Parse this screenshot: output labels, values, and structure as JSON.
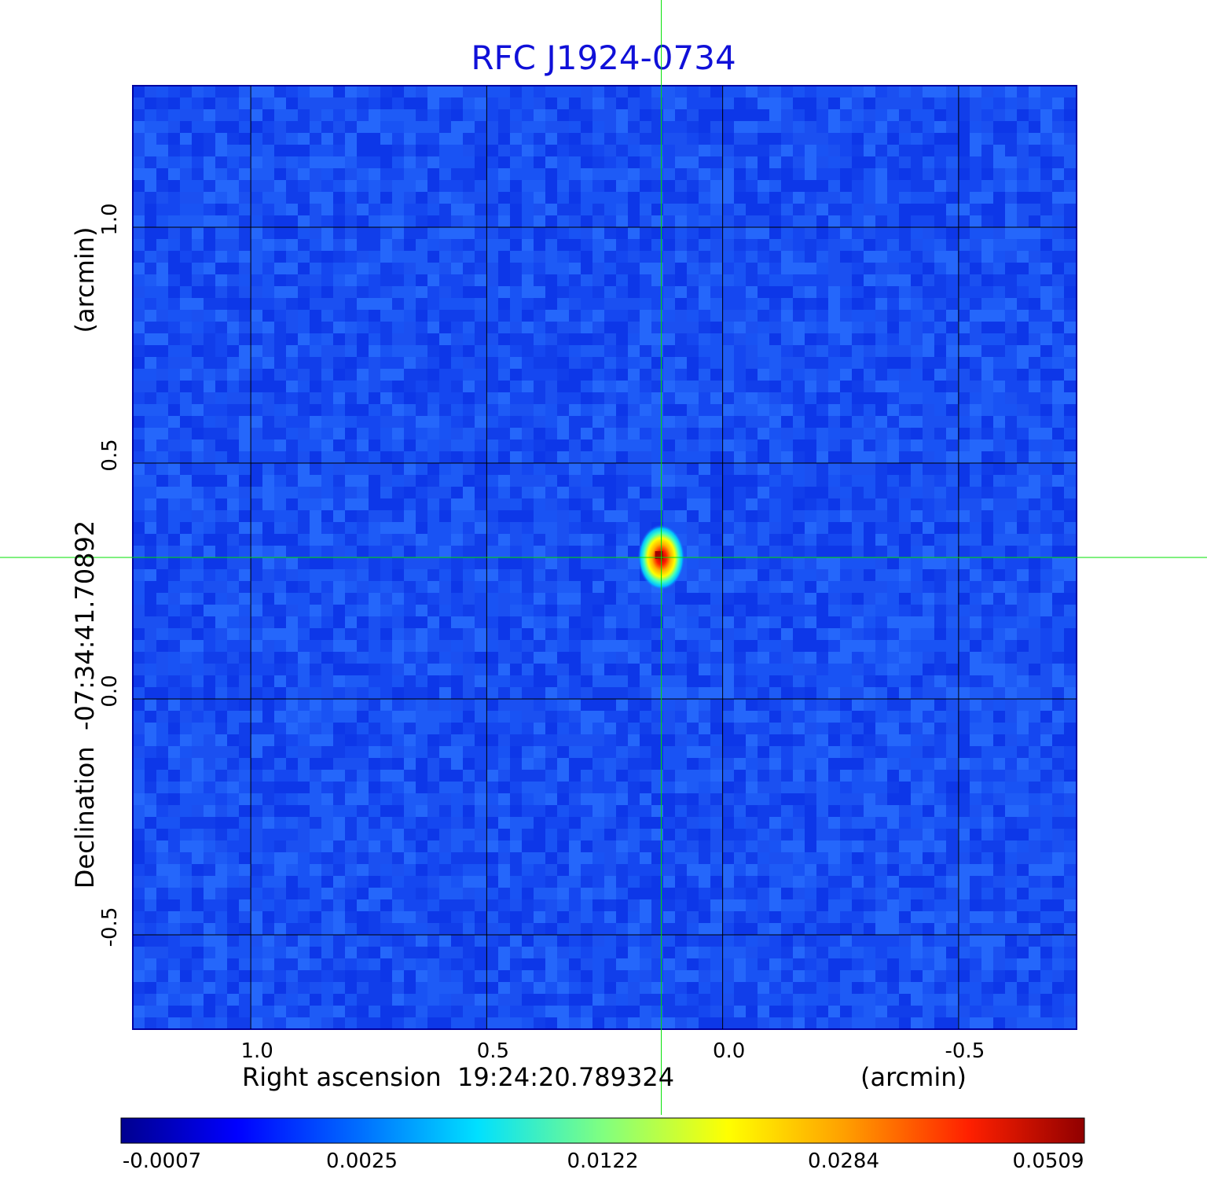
{
  "chart_data": {
    "type": "heatmap",
    "title": "RFC J1924-0734",
    "xlabel": "Right ascension  19:24:20.789324",
    "xunit": "(arcmin)",
    "ylabel": "Declination  -07:34:41.70892",
    "yunit": "(arcmin)",
    "xlim": [
      1.25,
      -0.75
    ],
    "ylim": [
      -0.7,
      1.3
    ],
    "x_ticks": [
      {
        "value": 1.0,
        "label": "1.0"
      },
      {
        "value": 0.5,
        "label": "0.5"
      },
      {
        "value": 0.0,
        "label": "0.0"
      },
      {
        "value": -0.5,
        "label": "-0.5"
      }
    ],
    "y_ticks": [
      {
        "value": 1.0,
        "label": "1.0"
      },
      {
        "value": 0.5,
        "label": "0.5"
      },
      {
        "value": 0.0,
        "label": "0.0"
      },
      {
        "value": -0.5,
        "label": "-0.5"
      }
    ],
    "grid": true,
    "colormap": "jet",
    "colorbar": {
      "orientation": "horizontal",
      "ticks": [
        "-0.0007",
        "0.0025",
        "0.0122",
        "0.0284",
        "0.0509"
      ]
    },
    "peak": {
      "x": 0.13,
      "y": 0.3,
      "value": 0.0509
    },
    "crosshair": {
      "x": 0.13,
      "y": 0.3,
      "color": "#00e000"
    },
    "background_color": "#1a4cf0"
  }
}
